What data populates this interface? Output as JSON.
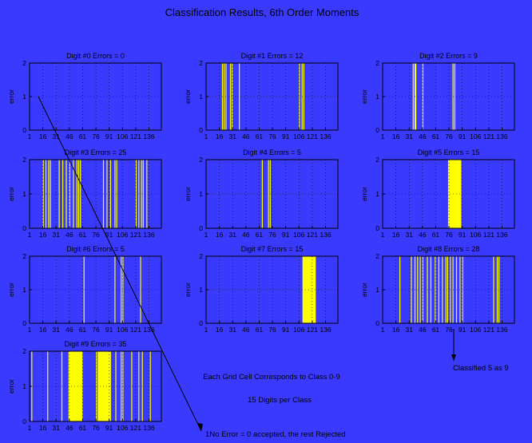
{
  "figure_title": "Classification Results, 6th Order Moments",
  "colors": {
    "background": "#3a3aff",
    "bar": "#ffff00",
    "frame": "#000000",
    "grid": "#000000"
  },
  "x_tick_labels": [
    "1",
    "16",
    "31",
    "46",
    "61",
    "76",
    "91",
    "106",
    "121",
    "136"
  ],
  "annotations": {
    "grid_note": "Each Grid Cell Corresponds to Class 0-9",
    "digits_note": "15 Digits per Class",
    "legend_note": "1No Error = 0 accepted, the rest Rejected",
    "misclass_note": "Classified 5 as 9"
  },
  "chart_data": [
    {
      "type": "bar",
      "title": "Digit #0 Errors = 0",
      "ylabel": "error",
      "xlim": [
        1,
        150
      ],
      "ylim": [
        0,
        2
      ],
      "grid": true,
      "error_bars": []
    },
    {
      "type": "bar",
      "title": "Digit #1 Errors = 12",
      "ylabel": "error",
      "xlim": [
        1,
        150
      ],
      "ylim": [
        0,
        2
      ],
      "grid": true,
      "error_bars": [
        [
          19,
          20,
          2
        ],
        [
          21,
          22,
          2
        ],
        [
          23,
          24,
          2
        ],
        [
          28,
          29,
          2
        ],
        [
          30,
          31,
          2
        ],
        [
          38,
          39,
          2
        ],
        [
          106,
          107,
          2
        ],
        [
          109,
          110,
          2
        ],
        [
          111,
          112,
          2
        ]
      ]
    },
    {
      "type": "bar",
      "title": "Digit #2 Errors = 9",
      "ylabel": "error",
      "xlim": [
        1,
        150
      ],
      "ylim": [
        0,
        2
      ],
      "grid": true,
      "error_bars": [
        [
          35,
          36,
          2
        ],
        [
          37,
          38,
          2
        ],
        [
          38,
          39,
          2
        ],
        [
          46,
          47,
          2
        ],
        [
          80,
          81,
          2
        ],
        [
          82,
          83,
          2
        ]
      ]
    },
    {
      "type": "bar",
      "title": "Digit #3 Errors = 25",
      "ylabel": "error",
      "xlim": [
        1,
        150
      ],
      "ylim": [
        0,
        2
      ],
      "grid": true,
      "error_bars": [
        [
          16,
          17,
          2
        ],
        [
          19,
          20,
          2
        ],
        [
          22,
          23,
          2
        ],
        [
          24,
          25,
          2
        ],
        [
          34,
          35,
          2
        ],
        [
          38,
          39,
          2
        ],
        [
          42,
          43,
          2
        ],
        [
          46,
          47,
          2
        ],
        [
          50,
          51,
          2
        ],
        [
          54,
          55,
          2
        ],
        [
          56,
          57,
          2
        ],
        [
          58,
          59,
          2
        ],
        [
          84,
          85,
          2
        ],
        [
          88,
          89,
          2
        ],
        [
          92,
          93,
          2
        ],
        [
          97,
          98,
          2
        ],
        [
          99,
          100,
          2
        ],
        [
          121,
          122,
          2
        ],
        [
          124,
          125,
          2
        ],
        [
          127,
          128,
          2
        ],
        [
          129,
          130,
          2
        ],
        [
          133,
          134,
          2
        ]
      ]
    },
    {
      "type": "bar",
      "title": "Digit #4 Errors = 5",
      "ylabel": "error",
      "xlim": [
        1,
        150
      ],
      "ylim": [
        0,
        2
      ],
      "grid": true,
      "error_bars": [
        [
          64,
          65,
          2
        ],
        [
          71,
          72,
          2
        ],
        [
          73,
          74,
          2
        ]
      ]
    },
    {
      "type": "bar",
      "title": "Digit #5 Errors = 15",
      "ylabel": "error",
      "xlim": [
        1,
        150
      ],
      "ylim": [
        0,
        2
      ],
      "grid": true,
      "error_bars": [
        [
          75,
          90,
          2
        ]
      ]
    },
    {
      "type": "bar",
      "title": "Digit #6 Errors = 5",
      "ylabel": "error",
      "xlim": [
        1,
        150
      ],
      "ylim": [
        0,
        2
      ],
      "grid": true,
      "error_bars": [
        [
          62,
          63,
          2
        ],
        [
          97,
          98,
          2
        ],
        [
          104,
          105,
          2
        ],
        [
          106,
          107,
          2
        ],
        [
          126,
          127,
          2
        ]
      ]
    },
    {
      "type": "bar",
      "title": "Digit #7 Errors = 15",
      "ylabel": "error",
      "xlim": [
        1,
        150
      ],
      "ylim": [
        0,
        2
      ],
      "grid": true,
      "error_bars": [
        [
          110,
          125,
          2
        ]
      ]
    },
    {
      "type": "bar",
      "title": "Digit #8 Errors = 28",
      "ylabel": "error",
      "xlim": [
        1,
        150
      ],
      "ylim": [
        0,
        2
      ],
      "grid": true,
      "error_bars": [
        [
          20,
          21,
          2
        ],
        [
          33,
          34,
          2
        ],
        [
          37,
          38,
          2
        ],
        [
          40,
          41,
          2
        ],
        [
          43,
          44,
          2
        ],
        [
          46,
          47,
          2
        ],
        [
          51,
          52,
          2
        ],
        [
          55,
          56,
          2
        ],
        [
          60,
          61,
          2
        ],
        [
          64,
          65,
          2
        ],
        [
          68,
          69,
          2
        ],
        [
          72,
          73,
          2
        ],
        [
          74,
          75,
          2
        ],
        [
          77,
          78,
          2
        ],
        [
          80,
          81,
          2
        ],
        [
          84,
          85,
          2
        ],
        [
          88,
          89,
          2
        ],
        [
          91,
          92,
          2
        ],
        [
          126,
          127,
          2
        ],
        [
          130,
          131,
          2
        ],
        [
          132,
          133,
          2
        ]
      ]
    },
    {
      "type": "bar",
      "title": "Digit #9 Errors = 35",
      "ylabel": "error",
      "xlim": [
        1,
        150
      ],
      "ylim": [
        0,
        2
      ],
      "grid": true,
      "error_bars": [
        [
          3,
          4,
          2
        ],
        [
          21,
          22,
          2
        ],
        [
          37,
          38,
          2
        ],
        [
          45,
          61,
          2
        ],
        [
          76,
          77,
          2
        ],
        [
          78,
          93,
          2
        ],
        [
          98,
          99,
          2
        ],
        [
          104,
          105,
          2
        ],
        [
          106,
          107,
          2
        ],
        [
          116,
          117,
          2
        ],
        [
          124,
          125,
          2
        ],
        [
          128,
          129,
          2
        ],
        [
          137,
          138,
          2
        ]
      ]
    }
  ]
}
